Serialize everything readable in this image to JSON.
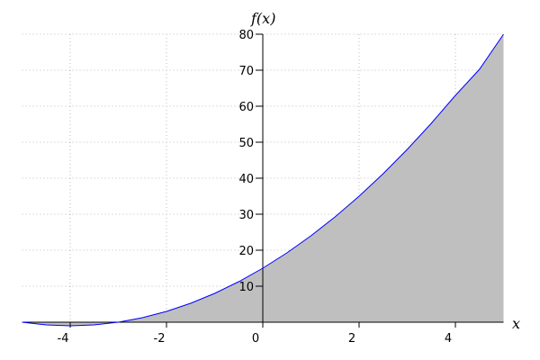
{
  "chart_data": {
    "type": "area",
    "title": "",
    "xlabel": "x",
    "ylabel": "f(x)",
    "xlim": [
      -5,
      5
    ],
    "ylim": [
      0,
      80
    ],
    "grid": true,
    "x_ticks": [
      -4,
      -2,
      0,
      2,
      4
    ],
    "x_tick_labels": [
      "-4",
      "-2",
      "0",
      "2",
      "4"
    ],
    "y_ticks": [
      10,
      20,
      30,
      40,
      50,
      60,
      70,
      80
    ],
    "y_tick_labels": [
      "10",
      "20",
      "30",
      "40",
      "50",
      "60",
      "70",
      "80"
    ],
    "line_color": "#0000ff",
    "fill_color": "#bfbfbf",
    "series": [
      {
        "x": [
          -5,
          -4.5,
          -4,
          -3.5,
          -3,
          -2.5,
          -2,
          -1.5,
          -1,
          -0.5,
          0,
          0.5,
          1,
          1.5,
          2,
          2.5,
          3,
          3.5,
          4,
          4.5,
          5
        ],
        "y": [
          0,
          -0.75,
          -1,
          -0.75,
          0,
          1.25,
          3,
          5.25,
          8,
          11.25,
          15,
          19.25,
          24,
          29.25,
          35,
          41.25,
          48,
          55.25,
          63,
          70.25,
          80
        ]
      }
    ]
  }
}
